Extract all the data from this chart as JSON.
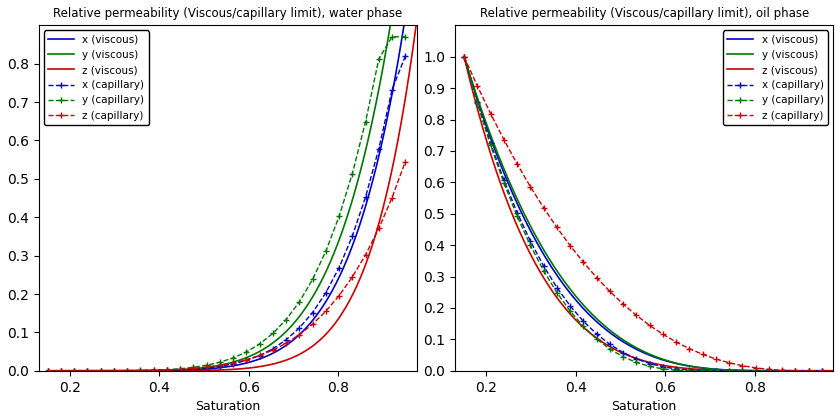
{
  "title_water": "Relative permeability (Viscous/capillary limit), water phase",
  "title_oil": "Relative permeability (Viscous/capillary limit), oil phase",
  "xlabel": "Saturation",
  "colors_viscous": [
    "#0000cc",
    "#007700",
    "#cc0000"
  ],
  "colors_capillary": [
    "#0000cc",
    "#007700",
    "#cc0000"
  ],
  "figsize": [
    8.4,
    4.2
  ],
  "dpi": 100,
  "legend_water": [
    "x (viscous)",
    "y (viscous)",
    "z (viscous)",
    "x (capillary)",
    "y (capillary)",
    "z (capillary)"
  ],
  "legend_oil": [
    "x (viscous)",
    "y (viscous)",
    "z (viscous)",
    "x (capillary)",
    "y (capillary)",
    "z (capillary)"
  ]
}
